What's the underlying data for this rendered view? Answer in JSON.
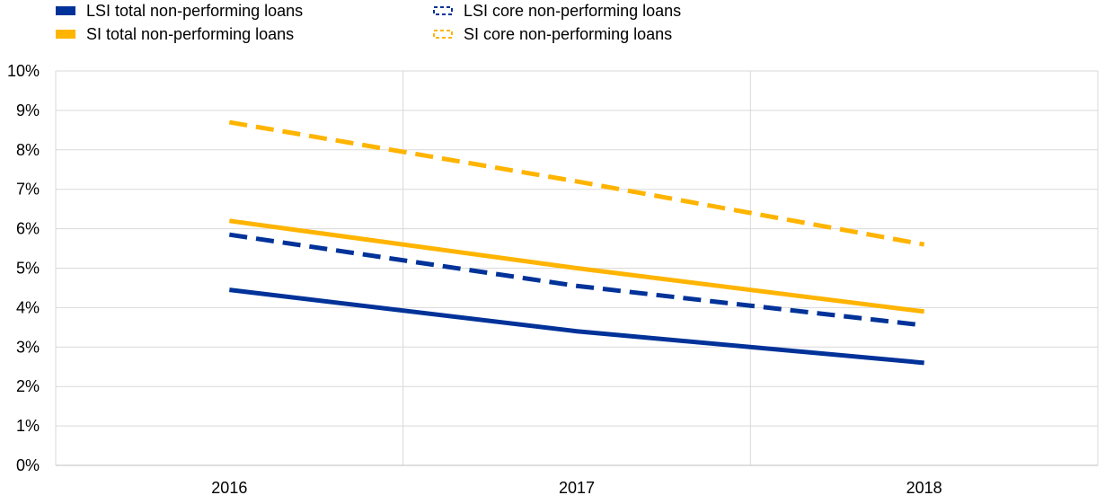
{
  "chart_data": {
    "type": "line",
    "title": "",
    "xlabel": "",
    "ylabel": "",
    "categories": [
      "2016",
      "2017",
      "2018"
    ],
    "ylim": [
      0,
      10
    ],
    "y_ticks": [
      "0%",
      "1%",
      "2%",
      "3%",
      "4%",
      "5%",
      "6%",
      "7%",
      "8%",
      "9%",
      "10%"
    ],
    "grid": true,
    "legend_position": "top",
    "series": [
      {
        "name": "LSI total non-performing loans",
        "values": [
          4.45,
          3.4,
          2.6
        ],
        "color": "#003299",
        "style": "solid"
      },
      {
        "name": "LSI core non-performing loans",
        "values": [
          5.85,
          4.55,
          3.55
        ],
        "color": "#003299",
        "style": "dashed"
      },
      {
        "name": "SI total non-performing loans",
        "values": [
          6.2,
          5.0,
          3.9
        ],
        "color": "#FFB400",
        "style": "solid"
      },
      {
        "name": "SI core non-performing loans",
        "values": [
          8.7,
          7.2,
          5.6
        ],
        "color": "#FFB400",
        "style": "dashed"
      }
    ]
  }
}
